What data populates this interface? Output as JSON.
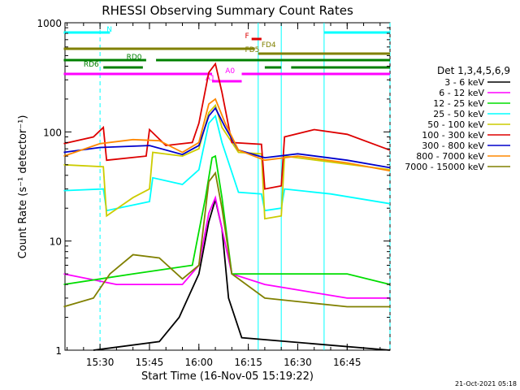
{
  "chart_data": {
    "type": "line",
    "title": "RHESSI Observing Summary Count Rates",
    "xlabel": "Start Time (16-Nov-05 15:19:22)",
    "ylabel": "Count Rate (s⁻¹ detector⁻¹)",
    "yscale": "log",
    "ylim": [
      1,
      1000
    ],
    "xlim": [
      "15:19:22",
      "16:58:00"
    ],
    "x_ticks": [
      "15:30",
      "15:45",
      "16:00",
      "16:15",
      "16:30",
      "16:45"
    ],
    "y_ticks": [
      "1",
      "10",
      "100",
      "1000"
    ],
    "legend": {
      "title": "Det 1,3,4,5,6,9",
      "placement": "right",
      "entries": [
        {
          "label": "3 - 6 keV",
          "color": "#000000"
        },
        {
          "label": "6 - 12 keV",
          "color": "#ff00ff"
        },
        {
          "label": "12 - 25 keV",
          "color": "#00dd00"
        },
        {
          "label": "25 - 50 keV",
          "color": "#00ffff"
        },
        {
          "label": "50 - 100 keV",
          "color": "#cccc00"
        },
        {
          "label": "100 - 300 keV",
          "color": "#dd0000"
        },
        {
          "label": "300 - 800 keV",
          "color": "#0000cc"
        },
        {
          "label": "800 - 7000 keV",
          "color": "#ff8800"
        },
        {
          "label": "7000 - 15000 keV",
          "color": "#808000"
        }
      ]
    },
    "series": [
      {
        "name": "3 - 6 keV",
        "color": "#000000",
        "points": [
          [
            "15:28",
            1.0
          ],
          [
            "15:48",
            1.2
          ],
          [
            "15:54",
            2.0
          ],
          [
            "16:00",
            5.0
          ],
          [
            "16:03",
            15.0
          ],
          [
            "16:05",
            24.0
          ],
          [
            "16:07",
            13.0
          ],
          [
            "16:09",
            3.0
          ],
          [
            "16:13",
            1.3
          ],
          [
            "16:58",
            1.0
          ]
        ]
      },
      {
        "name": "6 - 12 keV",
        "color": "#ff00ff",
        "points": [
          [
            "15:19",
            5.0
          ],
          [
            "15:35",
            4.0
          ],
          [
            "15:55",
            4.0
          ],
          [
            "16:00",
            6.0
          ],
          [
            "16:03",
            18.0
          ],
          [
            "16:05",
            25.0
          ],
          [
            "16:07",
            13.0
          ],
          [
            "16:10",
            5.0
          ],
          [
            "16:20",
            4.0
          ],
          [
            "16:45",
            3.0
          ],
          [
            "16:58",
            3.0
          ]
        ]
      },
      {
        "name": "12 - 25 keV",
        "color": "#00dd00",
        "points": [
          [
            "15:19",
            4.0
          ],
          [
            "15:40",
            5.0
          ],
          [
            "15:58",
            6.0
          ],
          [
            "16:02",
            25.0
          ],
          [
            "16:04",
            58.0
          ],
          [
            "16:05",
            60.0
          ],
          [
            "16:07",
            25.0
          ],
          [
            "16:10",
            5.0
          ],
          [
            "16:25",
            5.0
          ],
          [
            "16:45",
            5.0
          ],
          [
            "16:58",
            4.0
          ]
        ]
      },
      {
        "name": "25 - 50 keV",
        "color": "#00ffff",
        "points": [
          [
            "15:19",
            29.0
          ],
          [
            "15:31",
            30.0
          ],
          [
            "15:32",
            19.0
          ],
          [
            "15:45",
            23.0
          ],
          [
            "15:46",
            38.0
          ],
          [
            "15:55",
            33.0
          ],
          [
            "16:00",
            45.0
          ],
          [
            "16:03",
            120.0
          ],
          [
            "16:05",
            140.0
          ],
          [
            "16:07",
            80.0
          ],
          [
            "16:12",
            28.0
          ],
          [
            "16:19",
            27.0
          ],
          [
            "16:20",
            19.0
          ],
          [
            "16:25",
            20.0
          ],
          [
            "16:26",
            30.0
          ],
          [
            "16:40",
            27.0
          ],
          [
            "16:58",
            22.0
          ]
        ]
      },
      {
        "name": "50 - 100 keV",
        "color": "#cccc00",
        "points": [
          [
            "15:19",
            50.0
          ],
          [
            "15:31",
            48.0
          ],
          [
            "15:32",
            17.0
          ],
          [
            "15:40",
            25.0
          ],
          [
            "15:45",
            30.0
          ],
          [
            "15:46",
            65.0
          ],
          [
            "15:55",
            60.0
          ],
          [
            "16:00",
            70.0
          ],
          [
            "16:03",
            150.0
          ],
          [
            "16:05",
            175.0
          ],
          [
            "16:07",
            110.0
          ],
          [
            "16:12",
            65.0
          ],
          [
            "16:19",
            63.0
          ],
          [
            "16:20",
            16.0
          ],
          [
            "16:25",
            17.0
          ],
          [
            "16:26",
            60.0
          ],
          [
            "16:58",
            45.0
          ]
        ]
      },
      {
        "name": "100 - 300 keV",
        "color": "#dd0000",
        "points": [
          [
            "15:19",
            78.0
          ],
          [
            "15:28",
            90.0
          ],
          [
            "15:31",
            110.0
          ],
          [
            "15:32",
            55.0
          ],
          [
            "15:44",
            60.0
          ],
          [
            "15:45",
            105.0
          ],
          [
            "15:50",
            75.0
          ],
          [
            "15:58",
            80.0
          ],
          [
            "16:00",
            120.0
          ],
          [
            "16:03",
            350.0
          ],
          [
            "16:05",
            420.0
          ],
          [
            "16:07",
            230.0
          ],
          [
            "16:10",
            80.0
          ],
          [
            "16:19",
            77.0
          ],
          [
            "16:20",
            30.0
          ],
          [
            "16:25",
            32.0
          ],
          [
            "16:26",
            90.0
          ],
          [
            "16:35",
            105.0
          ],
          [
            "16:45",
            95.0
          ],
          [
            "16:58",
            68.0
          ]
        ]
      },
      {
        "name": "300 - 800 keV",
        "color": "#0000cc",
        "points": [
          [
            "15:19",
            65.0
          ],
          [
            "15:30",
            72.0
          ],
          [
            "15:45",
            75.0
          ],
          [
            "15:55",
            62.0
          ],
          [
            "16:00",
            75.0
          ],
          [
            "16:03",
            140.0
          ],
          [
            "16:05",
            165.0
          ],
          [
            "16:08",
            110.0
          ],
          [
            "16:12",
            68.0
          ],
          [
            "16:20",
            58.0
          ],
          [
            "16:30",
            63.0
          ],
          [
            "16:45",
            55.0
          ],
          [
            "16:58",
            47.0
          ]
        ]
      },
      {
        "name": "800 - 7000 keV",
        "color": "#ff8800",
        "points": [
          [
            "15:19",
            60.0
          ],
          [
            "15:30",
            78.0
          ],
          [
            "15:40",
            85.0
          ],
          [
            "15:48",
            83.0
          ],
          [
            "15:55",
            65.0
          ],
          [
            "16:00",
            80.0
          ],
          [
            "16:03",
            180.0
          ],
          [
            "16:05",
            200.0
          ],
          [
            "16:08",
            120.0
          ],
          [
            "16:12",
            68.0
          ],
          [
            "16:20",
            55.0
          ],
          [
            "16:30",
            60.0
          ],
          [
            "16:45",
            52.0
          ],
          [
            "16:58",
            44.0
          ]
        ]
      },
      {
        "name": "7000 - 15000 keV",
        "color": "#808000",
        "points": [
          [
            "15:19",
            2.5
          ],
          [
            "15:28",
            3.0
          ],
          [
            "15:33",
            5.0
          ],
          [
            "15:40",
            7.5
          ],
          [
            "15:48",
            7.0
          ],
          [
            "15:55",
            4.5
          ],
          [
            "16:00",
            6.0
          ],
          [
            "16:03",
            35.0
          ],
          [
            "16:05",
            42.0
          ],
          [
            "16:07",
            20.0
          ],
          [
            "16:10",
            5.0
          ],
          [
            "16:20",
            3.0
          ],
          [
            "16:45",
            2.5
          ],
          [
            "16:58",
            2.5
          ]
        ]
      }
    ],
    "flags": [
      {
        "label": "N",
        "color": "#00ffff",
        "segments": [
          [
            "15:19",
            "15:33"
          ],
          [
            "16:38",
            "16:58"
          ]
        ]
      },
      {
        "label": "F",
        "color": "#dd0000",
        "segments": [
          [
            "16:16",
            "16:19"
          ]
        ]
      },
      {
        "label": "FD4",
        "color": "#808000",
        "segments": [
          [
            "15:19",
            "16:17"
          ]
        ]
      },
      {
        "label": "FD5",
        "color": "#808000",
        "segments": [
          [
            "16:18",
            "16:58"
          ]
        ]
      },
      {
        "label": "RD0",
        "color": "#008000",
        "segments": [
          [
            "15:19",
            "15:44"
          ],
          [
            "15:47",
            "16:58"
          ]
        ]
      },
      {
        "label": "RD6",
        "color": "#008000",
        "segments": [
          [
            "15:31",
            "15:43"
          ],
          [
            "16:20",
            "16:25"
          ],
          [
            "16:28",
            "16:58"
          ]
        ]
      },
      {
        "label": "A0",
        "color": "#ff00ff",
        "segments": [
          [
            "15:19",
            "16:04"
          ],
          [
            "16:13",
            "16:58"
          ]
        ]
      },
      {
        "label": "A1",
        "color": "#ff00ff",
        "segments": [
          [
            "16:04",
            "16:13"
          ]
        ]
      }
    ],
    "vertical_markers": [
      {
        "time": "15:30",
        "color": "#00ffff",
        "style": "dashed"
      },
      {
        "time": "16:38",
        "color": "#00ffff",
        "style": "solid"
      },
      {
        "time": "16:58",
        "color": "#00ffff",
        "style": "dashed"
      },
      {
        "time": "16:25",
        "color": "#00ffff",
        "style": "solid"
      },
      {
        "time": "16:18",
        "color": "#00ffff",
        "style": "solid"
      }
    ]
  },
  "footer": {
    "timestamp": "21-Oct-2021 05:18"
  }
}
